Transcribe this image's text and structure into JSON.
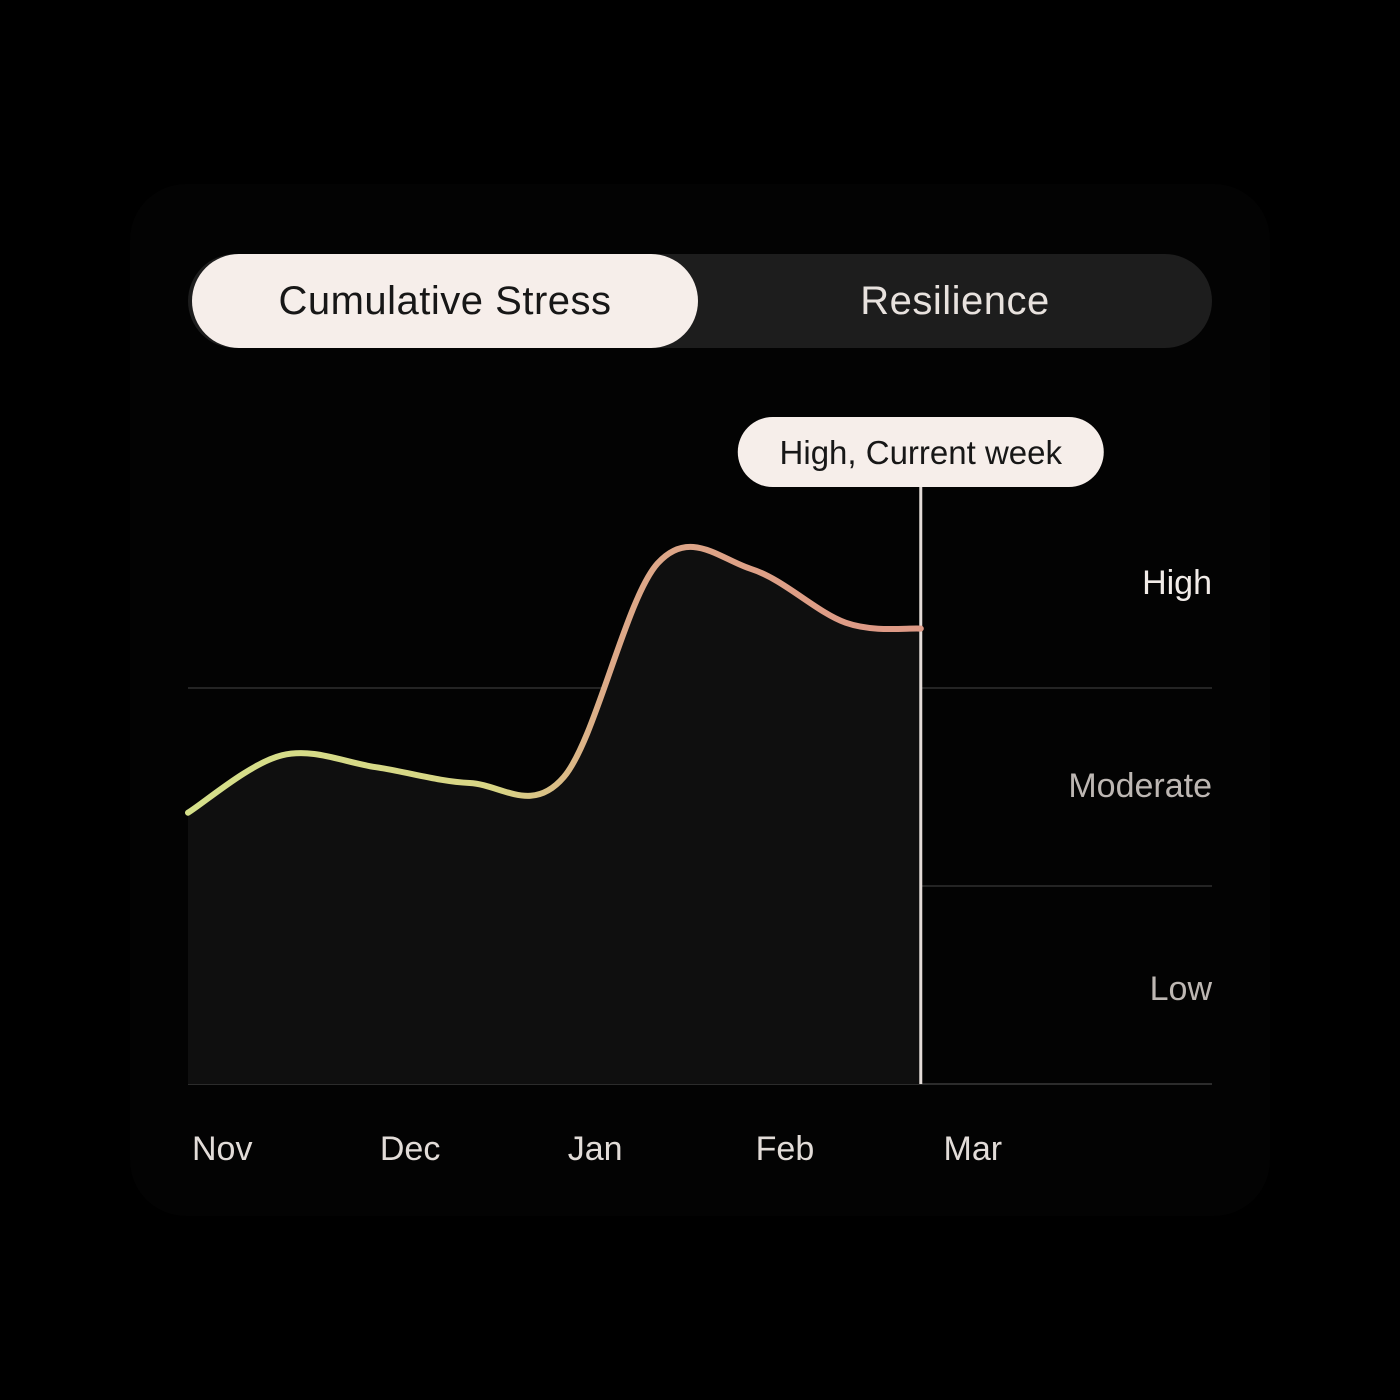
{
  "toggle": {
    "options": [
      {
        "label": "Cumulative Stress",
        "active": true
      },
      {
        "label": "Resilience",
        "active": false
      }
    ]
  },
  "tooltip": {
    "label": "High, Current week"
  },
  "chart_data": {
    "type": "line",
    "title": "",
    "xlabel": "",
    "ylabel": "",
    "x_tick_labels": [
      "Nov",
      "Dec",
      "Jan",
      "Feb",
      "Mar"
    ],
    "x_range": [
      0,
      5.45
    ],
    "y_range": [
      0,
      3
    ],
    "y_bands": [
      {
        "label": "Low",
        "range": [
          0,
          1
        ]
      },
      {
        "label": "Moderate",
        "range": [
          1,
          2
        ]
      },
      {
        "label": "High",
        "range": [
          2,
          3
        ]
      }
    ],
    "grid": true,
    "series": [
      {
        "x": [
          0.0,
          0.5,
          1.0,
          1.5,
          2.0,
          2.5,
          3.0,
          3.5,
          3.9
        ],
        "y": [
          1.37,
          1.66,
          1.6,
          1.52,
          1.55,
          2.63,
          2.6,
          2.33,
          2.3
        ]
      }
    ],
    "current_marker": {
      "x": 3.9,
      "label": "High, Current week"
    },
    "line_gradient": [
      "#d5e08a",
      "#dda988",
      "#de9a86"
    ]
  }
}
